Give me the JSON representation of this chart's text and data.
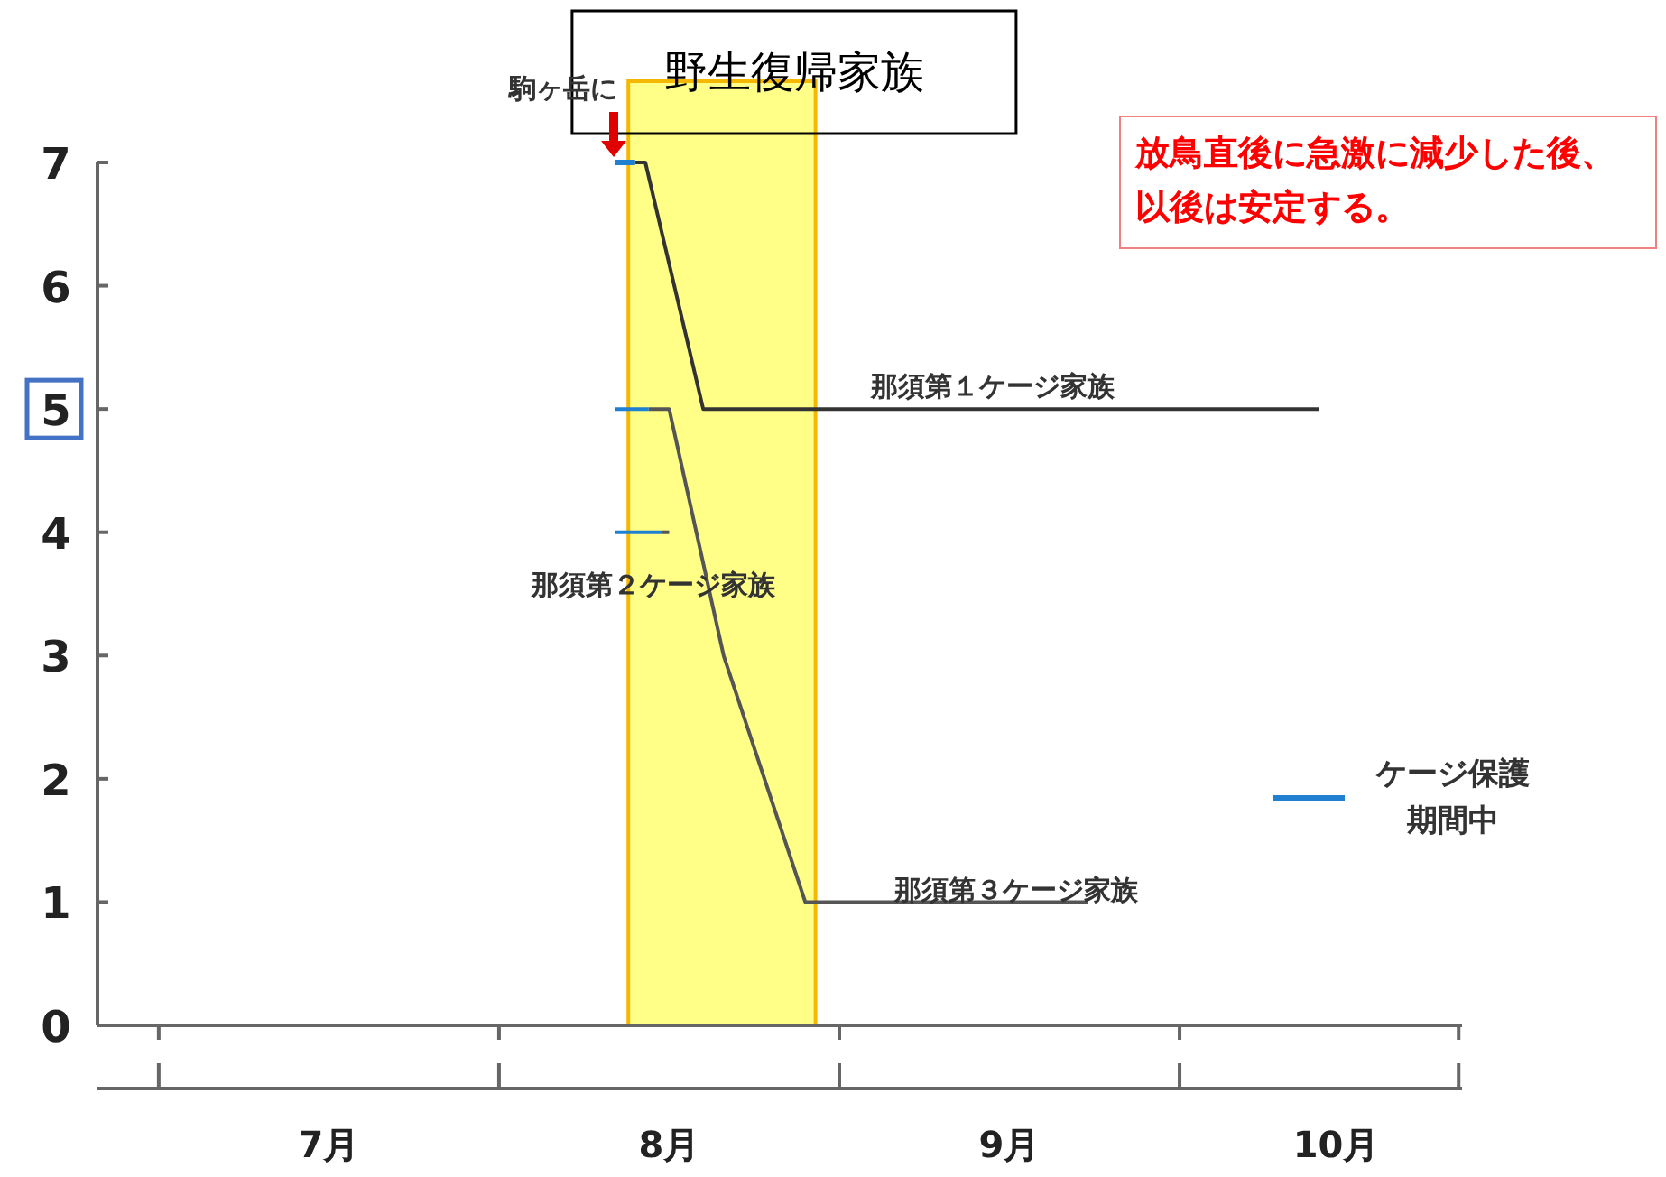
{
  "chart_data": {
    "type": "line",
    "xlim": [
      6.82,
      10.83
    ],
    "ylim": [
      0,
      7
    ],
    "xticks": [
      {
        "value": 7,
        "label": null
      },
      {
        "value": 7.5,
        "label": "7月"
      },
      {
        "value": 8,
        "label": null
      },
      {
        "value": 8.5,
        "label": "8月"
      },
      {
        "value": 9,
        "label": null
      },
      {
        "value": 9.5,
        "label": "9月"
      },
      {
        "value": 10,
        "label": null
      },
      {
        "value": 10.46,
        "label": "10月"
      },
      {
        "value": 10.82,
        "label": null
      }
    ],
    "yticks": [
      0,
      1,
      2,
      3,
      4,
      5,
      6,
      7
    ],
    "series": [
      {
        "color": "#333333",
        "x": [
          8.4,
          8.43,
          8.6,
          10.41
        ],
        "values": [
          7,
          7,
          5,
          5
        ]
      },
      {
        "color": "#555555",
        "x": [
          8.44,
          8.5,
          8.66,
          8.9,
          9.73
        ],
        "values": [
          5,
          5,
          3,
          1,
          1
        ]
      },
      {
        "color": "#555555",
        "x": [
          8.48,
          8.5
        ],
        "values": [
          4,
          4
        ]
      },
      {
        "name": "ケージ保護期間中",
        "color": "#1f7fd0",
        "x": [
          8.34,
          8.4
        ],
        "values": [
          7,
          7
        ]
      },
      {
        "color": "#1f7fd0",
        "x": [
          8.34,
          8.44
        ],
        "values": [
          5,
          5
        ]
      },
      {
        "color": "#1f7fd0",
        "x": [
          8.34,
          8.48
        ],
        "values": [
          4,
          4
        ]
      }
    ],
    "bands": [
      {
        "axis": "x",
        "from": 8.38,
        "to": 8.93,
        "label": "野生復帰家族",
        "color": "#ffff88"
      }
    ],
    "annotations": [
      "駒ヶ岳に",
      "那須第１ケージ家族",
      "那須第２ケージ家族",
      "那須第３ケージ家族",
      "放鳥直後に急激に減少した後、以後は安定する。"
    ],
    "legend": "right",
    "grid": false
  }
}
